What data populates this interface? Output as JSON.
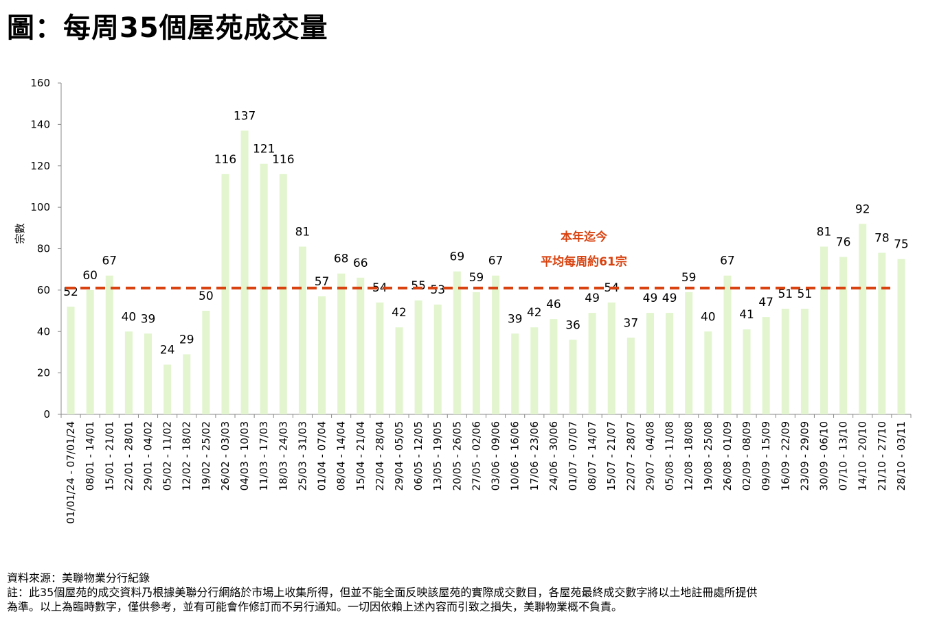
{
  "title": "圖：每周35個屋苑成交量",
  "notes": {
    "source": "資料來源：美聯物業分行紀錄",
    "note_line1": "註：此35個屋苑的成交資料乃根據美聯分行網絡於市場上收集所得，但並不能全面反映該屋苑的實際成交數目，各屋苑最終成交數字將以土地註冊處所提供",
    "note_line2": "為準。以上為臨時數字，僅供參考，並有可能會作修訂而不另行通知。一切因依賴上述內容而引致之損失，美聯物業概不負責。"
  },
  "colors": {
    "bar": "#e2f5cf",
    "average_line": "#d9420f",
    "annotation": "#d9420f",
    "axis": "#888888"
  },
  "chart_data": {
    "type": "bar",
    "ylabel": "宗數",
    "ylim": [
      0,
      160
    ],
    "yticks": [
      0,
      20,
      40,
      60,
      80,
      100,
      120,
      140,
      160
    ],
    "grid": false,
    "categories": [
      "01/01/24 - 07/01/24",
      "08/01 - 14/01",
      "15/01 - 21/01",
      "22/01 - 28/01",
      "29/01 - 04/02",
      "05/02 - 11/02",
      "12/02 - 18/02",
      "19/02 - 25/02",
      "26/02 - 03/03",
      "04/03 - 10/03",
      "11/03 - 17/03",
      "18/03 - 24/03",
      "25/03 - 31/03",
      "01/04 - 07/04",
      "08/04 - 14/04",
      "15/04 - 21/04",
      "22/04 - 28/04",
      "29/04 - 05/05",
      "06/05 - 12/05",
      "13/05 - 19/05",
      "20/05 - 26/05",
      "27/05 - 02/06",
      "03/06 - 09/06",
      "10/06 - 16/06",
      "17/06 - 23/06",
      "24/06 - 30/06",
      "01/07 - 07/07",
      "08/07 - 14/07",
      "15/07 - 21/07",
      "22/07 - 28/07",
      "29/07 - 04/08",
      "05/08 - 11/08",
      "12/08 - 18/08",
      "19/08 - 25/08",
      "26/08 - 01/09",
      "02/09 - 08/09",
      "09/09 - 15/09",
      "16/09 - 22/09",
      "23/09 - 29/09",
      "30/09 - 06/10",
      "07/10 - 13/10",
      "14/10 - 20/10",
      "21/10 - 27/10",
      "28/10 - 03/11"
    ],
    "values": [
      52,
      60,
      67,
      40,
      39,
      24,
      29,
      50,
      116,
      137,
      121,
      116,
      81,
      57,
      68,
      66,
      54,
      42,
      55,
      53,
      69,
      59,
      67,
      39,
      42,
      46,
      36,
      49,
      54,
      37,
      49,
      49,
      59,
      40,
      67,
      41,
      47,
      51,
      51,
      81,
      76,
      92,
      78,
      75
    ],
    "average": 61,
    "annotation": [
      "本年迄今",
      "平均每周約61宗"
    ]
  }
}
